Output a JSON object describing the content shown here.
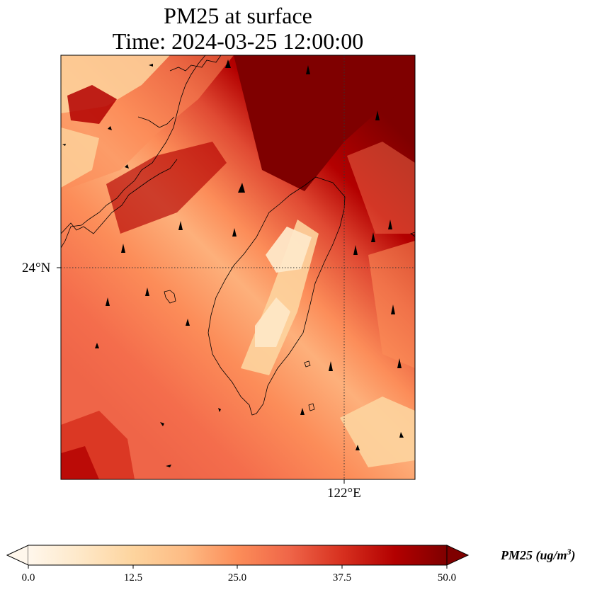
{
  "title": {
    "line1": "PM25 at surface",
    "line2": "Time: 2024-03-25 12:00:00"
  },
  "axes": {
    "lat_tick": "24°N",
    "lon_tick": "122°E"
  },
  "colorbar": {
    "label_main": "PM25 (ug/m",
    "label_sup": "3",
    "label_close": ")",
    "ticks": [
      "0.0",
      "12.5",
      "25.0",
      "37.5",
      "50.0"
    ],
    "range": [
      0,
      50
    ],
    "extend": "both",
    "colormap": "OrRd"
  },
  "map_content": {
    "region": "Taiwan and the Fujian coast",
    "field": "surface PM2.5 concentration",
    "wind_vectors": "quiver arrows",
    "gridlines": "dotted"
  },
  "colors": {
    "ramp": [
      "#fff7ec",
      "#fee8c8",
      "#fdd49e",
      "#fdbb84",
      "#fc8d59",
      "#ef6548",
      "#d7301f",
      "#b30000",
      "#7f0000"
    ]
  }
}
